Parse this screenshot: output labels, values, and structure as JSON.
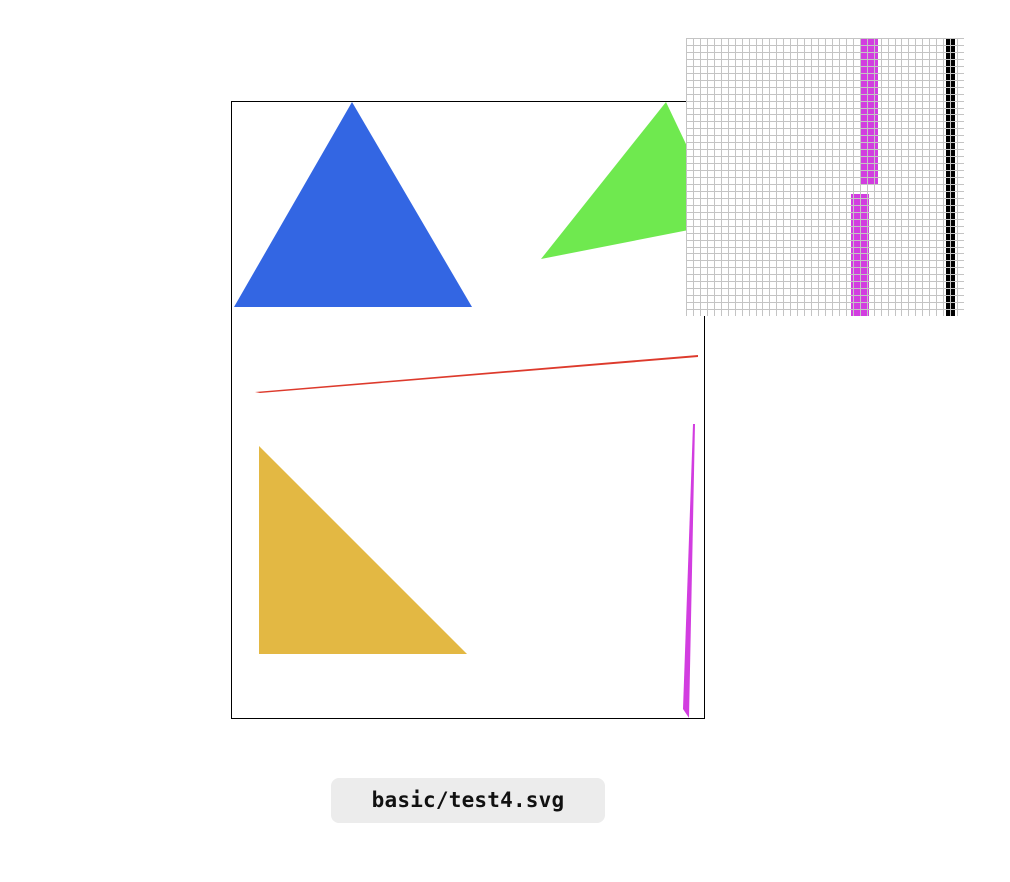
{
  "file": {
    "path": "basic/test4.svg"
  },
  "canvas": {
    "shapes": [
      {
        "name": "blue-triangle",
        "color": "#3366e3"
      },
      {
        "name": "green-triangle",
        "color": "#6fe94f"
      },
      {
        "name": "red-sliver",
        "color": "#dd3a2c"
      },
      {
        "name": "yellow-triangle",
        "color": "#e3b843"
      },
      {
        "name": "magenta-sliver",
        "color": "#d23de0"
      }
    ]
  },
  "zoom_inset": {
    "grid_color": "#c4c4c4",
    "highlight_color": "#d23de0",
    "border_color": "#000000"
  }
}
